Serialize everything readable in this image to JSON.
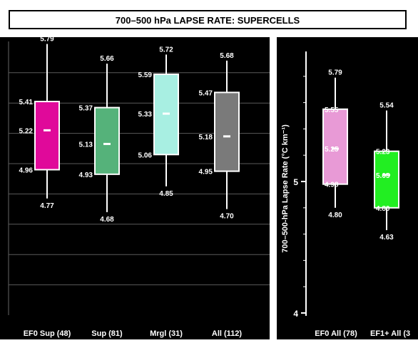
{
  "title": "700–500 hPa LAPSE RATE: SUPERCELLS",
  "chart_data": [
    {
      "type": "box",
      "categories": [
        "EF0 Sup (48)",
        "Sup (81)",
        "Mrgl (31)",
        "All (112)"
      ],
      "ylim": [
        4.0,
        6.0
      ],
      "grid": true,
      "boxes": [
        {
          "name": "EF0 Sup (48)",
          "min": 4.77,
          "q1": 4.96,
          "median": 5.22,
          "q3": 5.41,
          "max": 5.79,
          "color": "#e0099a"
        },
        {
          "name": "Sup (81)",
          "min": 4.68,
          "q1": 4.93,
          "median": 5.13,
          "q3": 5.37,
          "max": 5.66,
          "color": "#55b27a"
        },
        {
          "name": "Mrgl (31)",
          "min": 4.85,
          "q1": 5.06,
          "median": 5.33,
          "q3": 5.59,
          "max": 5.72,
          "color": "#a8efe2"
        },
        {
          "name": "All (112)",
          "min": 4.7,
          "q1": 4.95,
          "median": 5.18,
          "q3": 5.47,
          "max": 5.68,
          "color": "#7a7a7a"
        }
      ]
    },
    {
      "type": "box",
      "categories": [
        "EF0 All (78)",
        "EF1+ All (3"
      ],
      "ylabel": "700–500-hPa Lapse Rate (°C km⁻¹)",
      "ylim": [
        4.0,
        6.0
      ],
      "yticks": [
        4,
        5
      ],
      "grid": false,
      "boxes": [
        {
          "name": "EF0 All (78)",
          "min": 4.8,
          "q1": 4.98,
          "median": 5.25,
          "q3": 5.55,
          "max": 5.79,
          "color": "#e89ad6"
        },
        {
          "name": "EF1+ All (3",
          "min": 4.63,
          "q1": 4.8,
          "median": 5.05,
          "q3": 5.23,
          "max": 5.54,
          "color": "#22ee22"
        }
      ]
    }
  ]
}
